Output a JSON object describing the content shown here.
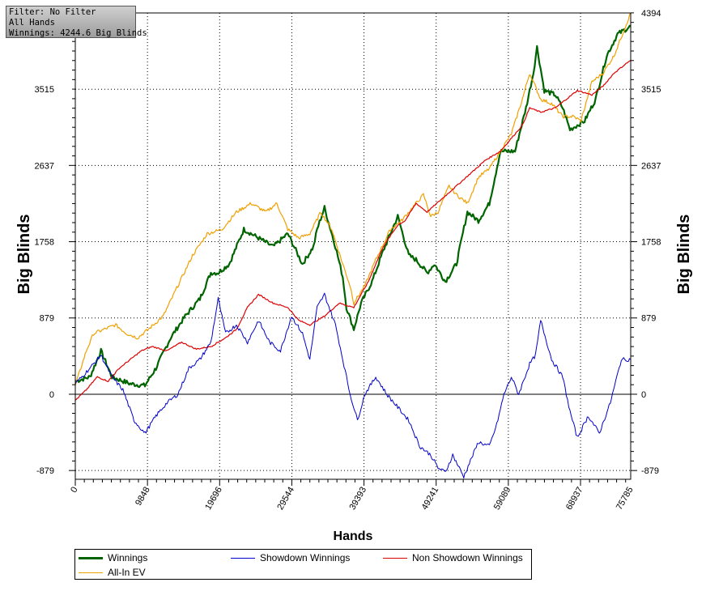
{
  "filter_box": {
    "line1": "Filter: No Filter",
    "line2": "All Hands",
    "line3": "Winnings: 4244.6 Big Blinds"
  },
  "colors": {
    "winnings": "#006400",
    "showdown": "#0000cc",
    "non_showdown": "#dd0000",
    "allin_ev": "#f0a000",
    "zero_line": "#000000",
    "grid": "#000000"
  },
  "chart_data": {
    "type": "line",
    "xlabel": "Hands",
    "ylabel_left": "Big Blinds",
    "ylabel_right": "Big Blinds",
    "xlim": [
      0,
      75785
    ],
    "ylim": [
      -980,
      4394
    ],
    "x_ticks": [
      "0",
      "9848",
      "19696",
      "29544",
      "39393",
      "49241",
      "59089",
      "68937",
      "75785"
    ],
    "x_tick_values": [
      0,
      9848,
      19696,
      29544,
      39393,
      49241,
      59089,
      68937,
      75785
    ],
    "y_ticks_left": [
      "-879",
      "0",
      "879",
      "1758",
      "2637",
      "3515"
    ],
    "y_ticks_right": [
      "-879",
      "0",
      "879",
      "1758",
      "2637",
      "3515",
      "4394"
    ],
    "y_tick_values": [
      -879,
      0,
      879,
      1758,
      2637,
      3515,
      4394
    ],
    "grid": "dotted",
    "legend_placement": "bottom",
    "series": [
      {
        "name": "Winnings",
        "color_key": "winnings",
        "x": [
          0,
          2000,
          3500,
          5000,
          7500,
          9500,
          11000,
          13000,
          15000,
          17000,
          18500,
          19500,
          21000,
          23000,
          25000,
          27000,
          29000,
          31000,
          32500,
          33000,
          34000,
          35500,
          36500,
          37000,
          38000,
          39000,
          40500,
          42000,
          44000,
          45500,
          46500,
          48000,
          49000,
          50500,
          52000,
          53500,
          55000,
          56500,
          58000,
          60000,
          61500,
          62500,
          63000,
          64000,
          65500,
          66500,
          67500,
          68500,
          69500,
          71000,
          72500,
          74000,
          75785
        ],
        "y": [
          150,
          200,
          500,
          200,
          120,
          100,
          300,
          650,
          900,
          1100,
          1400,
          1400,
          1500,
          1900,
          1800,
          1700,
          1850,
          1500,
          1700,
          1900,
          2150,
          1700,
          1350,
          1000,
          750,
          1050,
          1300,
          1650,
          2050,
          1600,
          1550,
          1400,
          1500,
          1300,
          1500,
          2100,
          2000,
          2200,
          2800,
          2800,
          3300,
          3700,
          4000,
          3500,
          3450,
          3300,
          3050,
          3100,
          3150,
          3400,
          3900,
          4150,
          4240
        ]
      },
      {
        "name": "Showdown Winnings",
        "color_key": "showdown",
        "x": [
          0,
          2000,
          3500,
          5000,
          6500,
          8000,
          9500,
          11000,
          12500,
          14000,
          15500,
          17000,
          18500,
          19500,
          20500,
          22000,
          23500,
          25000,
          26500,
          28000,
          29500,
          31000,
          32000,
          33000,
          34000,
          35500,
          36500,
          37500,
          38500,
          39500,
          41000,
          42500,
          44000,
          45500,
          47000,
          48500,
          49500,
          50500,
          51500,
          53000,
          55000,
          56500,
          57500,
          58500,
          59500,
          60500,
          62000,
          62800,
          63500,
          65000,
          66500,
          67500,
          68500,
          70000,
          71500,
          73000,
          74500,
          75785
        ],
        "y": [
          120,
          300,
          450,
          200,
          50,
          -300,
          -450,
          -250,
          -100,
          0,
          300,
          400,
          600,
          1100,
          700,
          800,
          600,
          850,
          600,
          500,
          900,
          700,
          400,
          1000,
          1150,
          800,
          400,
          0,
          -300,
          0,
          200,
          0,
          -150,
          -300,
          -600,
          -700,
          -850,
          -900,
          -700,
          -950,
          -550,
          -600,
          -350,
          0,
          200,
          0,
          350,
          450,
          850,
          400,
          200,
          -200,
          -500,
          -250,
          -450,
          -100,
          400,
          400
        ]
      },
      {
        "name": "Non Showdown Winnings",
        "color_key": "non_showdown",
        "x": [
          0,
          1500,
          3000,
          4500,
          6000,
          7500,
          9000,
          10500,
          12500,
          14500,
          16500,
          18500,
          20500,
          22000,
          23500,
          25000,
          27000,
          29000,
          30500,
          32000,
          34000,
          36000,
          38000,
          40000,
          42000,
          44000,
          45000,
          46500,
          48000,
          50000,
          52000,
          54000,
          56000,
          58000,
          60000,
          61000,
          62000,
          63500,
          65500,
          67000,
          68500,
          70500,
          72000,
          73500,
          75000,
          75785
        ],
        "y": [
          -70,
          50,
          200,
          150,
          300,
          400,
          500,
          550,
          500,
          600,
          520,
          550,
          650,
          750,
          1000,
          1150,
          1050,
          1000,
          850,
          800,
          900,
          1050,
          1000,
          1300,
          1700,
          1950,
          2000,
          2200,
          2100,
          2250,
          2400,
          2550,
          2700,
          2800,
          3000,
          3100,
          3300,
          3250,
          3300,
          3400,
          3500,
          3450,
          3550,
          3700,
          3800,
          3850
        ]
      },
      {
        "name": "All-In EV",
        "color_key": "allin_ev",
        "x": [
          0,
          1500,
          2500,
          4000,
          5500,
          7000,
          8500,
          10000,
          12000,
          14000,
          16000,
          18000,
          20000,
          22000,
          24000,
          26000,
          27500,
          29000,
          30500,
          32000,
          33500,
          35000,
          36500,
          37500,
          38000,
          39500,
          41000,
          43000,
          44500,
          46000,
          47500,
          48500,
          49500,
          51000,
          52000,
          53500,
          55000,
          56500,
          58000,
          59500,
          61000,
          62000,
          63500,
          65000,
          66500,
          68000,
          69000,
          70500,
          72000,
          73500,
          75785
        ],
        "y": [
          100,
          500,
          700,
          750,
          800,
          700,
          650,
          750,
          900,
          1250,
          1600,
          1850,
          1900,
          2100,
          2200,
          2100,
          2200,
          1900,
          1800,
          1850,
          2100,
          1900,
          1500,
          1250,
          1050,
          1250,
          1550,
          1900,
          2000,
          2150,
          2300,
          2050,
          2100,
          2400,
          2300,
          2200,
          2500,
          2600,
          2800,
          3000,
          3400,
          3700,
          3400,
          3350,
          3200,
          3200,
          3150,
          3600,
          3700,
          3900,
          4394
        ]
      }
    ]
  },
  "legend": {
    "items": [
      {
        "label": "Winnings",
        "color_key": "winnings"
      },
      {
        "label": "Showdown Winnings",
        "color_key": "showdown"
      },
      {
        "label": "Non Showdown Winnings",
        "color_key": "non_showdown"
      },
      {
        "label": "All-In EV",
        "color_key": "allin_ev"
      }
    ]
  }
}
